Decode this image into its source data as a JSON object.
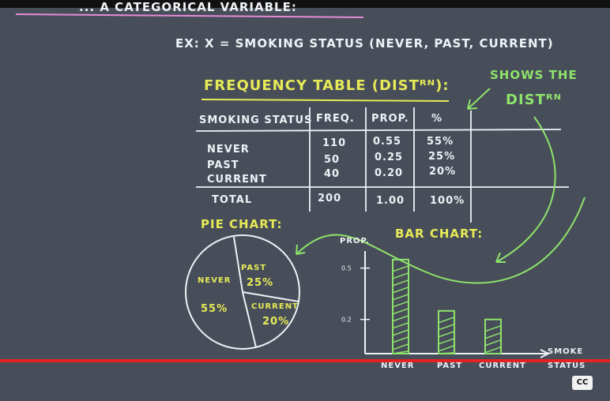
{
  "board": {
    "header_fragment": "... A CATEGORICAL VARIABLE:",
    "example": "EX:  X = SMOKING STATUS (NEVER, PAST, CURRENT)",
    "freq_title": "FREQUENCY TABLE (DISTᴿᴺ):",
    "shows_the": "SHOWS THE",
    "distn": "DISTᴿᴺ",
    "table": {
      "headers": [
        "SMOKING STATUS",
        "FREQ.",
        "PROP.",
        "%"
      ],
      "rows": [
        [
          "NEVER",
          "110",
          "0.55",
          "55%"
        ],
        [
          "PAST",
          "50",
          "0.25",
          "25%"
        ],
        [
          "CURRENT",
          "40",
          "0.20",
          "20%"
        ]
      ],
      "total": [
        "TOTAL",
        "200",
        "1.00",
        "100%"
      ]
    },
    "pie": {
      "title": "PIE CHART:",
      "slices": [
        {
          "label": "NEVER",
          "percent_label": "55%",
          "value": 55
        },
        {
          "label": "PAST",
          "percent_label": "25%",
          "value": 25
        },
        {
          "label": "CURRENT",
          "percent_label": "20%",
          "value": 20
        }
      ]
    },
    "bar": {
      "title": "BAR CHART:",
      "ylabel": "PROP.",
      "ytick_labels": [
        "0.5",
        "0.2"
      ],
      "categories": [
        "NEVER",
        "PAST",
        "CURRENT"
      ],
      "values": [
        0.55,
        0.25,
        0.2
      ],
      "xlabel_line1": "SMOKE",
      "xlabel_line2": "STATUS"
    }
  },
  "player": {
    "cc_label": "CC",
    "progress_fraction": 1.0,
    "progress_color": "#e52222"
  }
}
